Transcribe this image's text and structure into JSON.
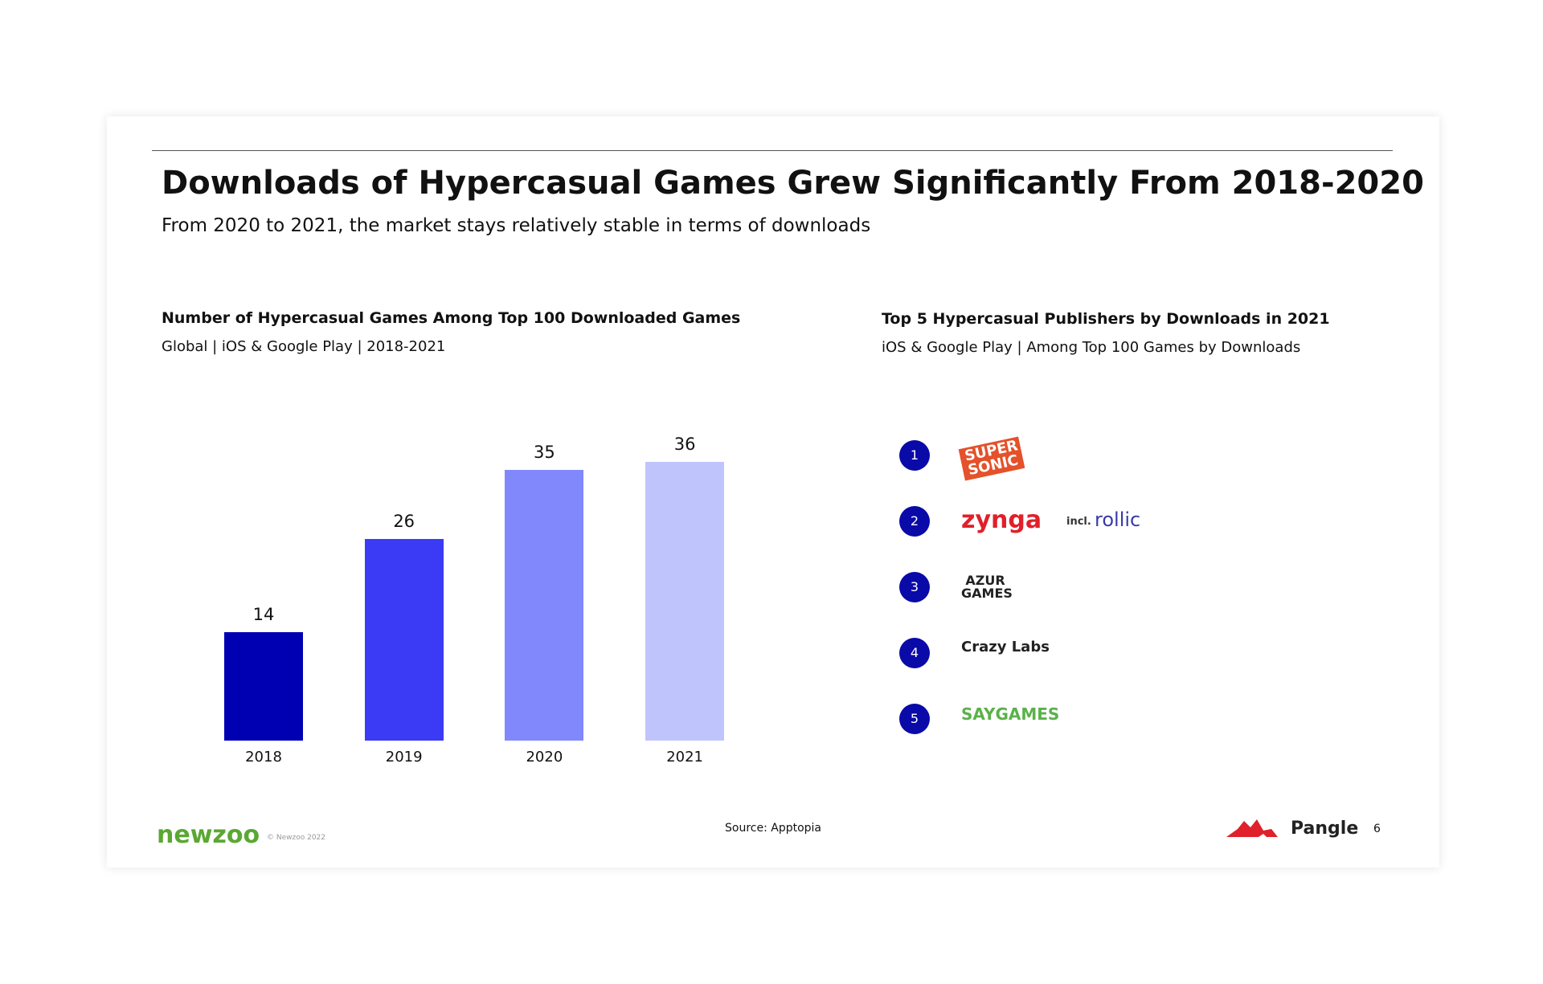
{
  "header": {
    "title": "Downloads of Hypercasual Games Grew Significantly From 2018-2020",
    "subtitle": "From 2020 to 2021, the market stays relatively stable in terms of downloads"
  },
  "chart_data": {
    "type": "bar",
    "title": "Number of Hypercasual Games Among Top 100 Downloaded Games",
    "subtitle": "Global | iOS & Google Play | 2018-2021",
    "categories": [
      "2018",
      "2019",
      "2020",
      "2021"
    ],
    "values": [
      14,
      26,
      35,
      36
    ],
    "colors": [
      "#0000b3",
      "#3b3bf5",
      "#8088fc",
      "#c0c4fd"
    ]
  },
  "publishers": {
    "title": "Top 5 Hypercasual Publishers by Downloads in 2021",
    "subtitle": "iOS & Google Play | Among Top 100 Games by Downloads",
    "items": [
      {
        "rank": "1",
        "name": "SUPER SONIC"
      },
      {
        "rank": "2",
        "name": "zynga",
        "note": "incl.",
        "extra": "rollic"
      },
      {
        "rank": "3",
        "name": "AZUR GAMES"
      },
      {
        "rank": "4",
        "name": "Crazy Labs"
      },
      {
        "rank": "5",
        "name": "SAYGAMES"
      }
    ]
  },
  "footer": {
    "brand": "newzoo",
    "copyright": "© Newzoo 2022",
    "source": "Source: Apptopia",
    "partner": "Pangle",
    "page": "6"
  }
}
